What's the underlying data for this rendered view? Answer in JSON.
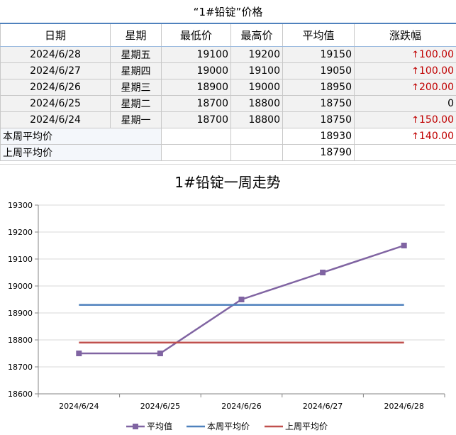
{
  "sheet_title": "“1#铅锭”价格",
  "table": {
    "headers": [
      "日期",
      "星期",
      "最低价",
      "最高价",
      "平均值",
      "涨跌幅"
    ],
    "rows": [
      {
        "date": "2024/6/28",
        "weekday": "星期五",
        "low": "19100",
        "high": "19200",
        "avg": "19150",
        "change": "100.00",
        "direction": "up"
      },
      {
        "date": "2024/6/27",
        "weekday": "星期四",
        "low": "19000",
        "high": "19100",
        "avg": "19050",
        "change": "100.00",
        "direction": "up"
      },
      {
        "date": "2024/6/26",
        "weekday": "星期三",
        "low": "18900",
        "high": "19000",
        "avg": "18950",
        "change": "200.00",
        "direction": "up"
      },
      {
        "date": "2024/6/25",
        "weekday": "星期二",
        "low": "18700",
        "high": "18800",
        "avg": "18750",
        "change": "0",
        "direction": "flat"
      },
      {
        "date": "2024/6/24",
        "weekday": "星期一",
        "low": "18700",
        "high": "18800",
        "avg": "18750",
        "change": "150.00",
        "direction": "up"
      }
    ],
    "this_week": {
      "label": "本周平均价",
      "avg": "18930",
      "change": "140.00",
      "direction": "up"
    },
    "last_week": {
      "label": "上周平均价",
      "avg": "18790"
    },
    "up_arrow": "↑",
    "up_color": "#c00000"
  },
  "chart_data": {
    "type": "line",
    "title": "1#铅锭一周走势",
    "categories": [
      "2024/6/24",
      "2024/6/25",
      "2024/6/26",
      "2024/6/27",
      "2024/6/28"
    ],
    "ylim": [
      18600,
      19300
    ],
    "yticks": [
      18600,
      18700,
      18800,
      18900,
      19000,
      19100,
      19200,
      19300
    ],
    "grid": "horizontal",
    "legend_position": "bottom",
    "series": [
      {
        "name": "平均值",
        "values": [
          18750,
          18750,
          18950,
          19050,
          19150
        ],
        "color": "#8064a2",
        "marker": "square"
      },
      {
        "name": "本周平均价",
        "values": [
          18930,
          18930,
          18930,
          18930,
          18930
        ],
        "color": "#4f81bd",
        "marker": "none"
      },
      {
        "name": "上周平均价",
        "values": [
          18790,
          18790,
          18790,
          18790,
          18790
        ],
        "color": "#c0504d",
        "marker": "none"
      }
    ]
  }
}
